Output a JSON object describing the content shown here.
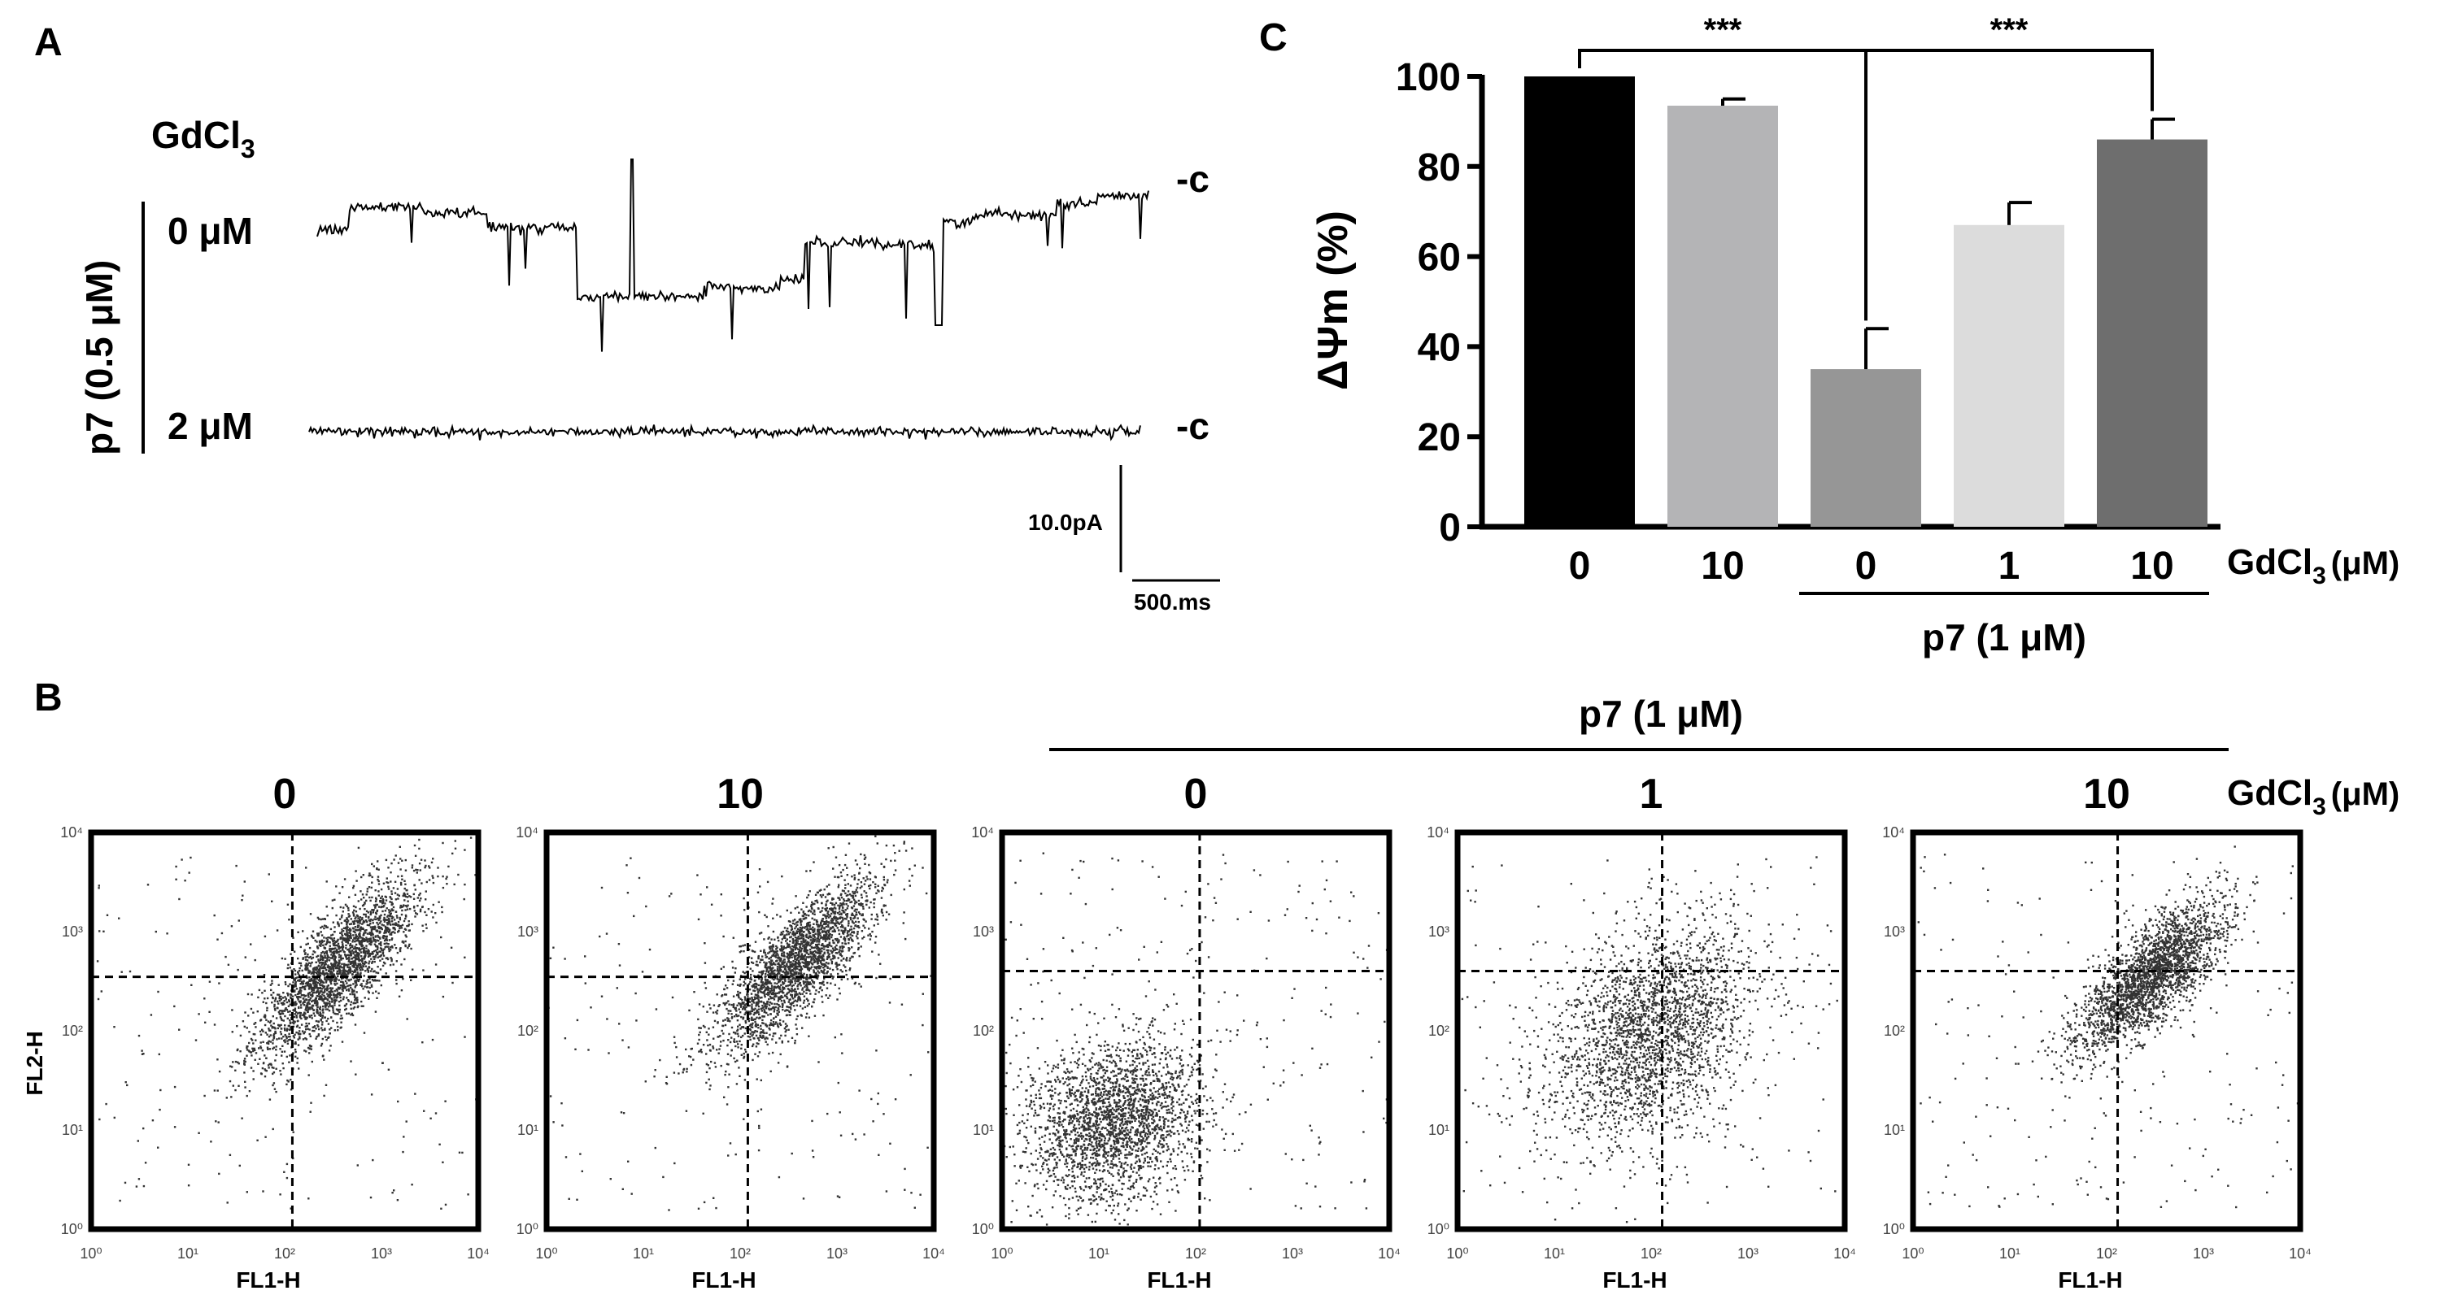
{
  "panel_labels": {
    "a": "A",
    "b": "B",
    "c": "C"
  },
  "panelA": {
    "compound": "GdCl",
    "compound_sub": "3",
    "group_label": "p7 (0.5 μM)",
    "traces": [
      {
        "conc": "0 μM",
        "closed_marker": "-c"
      },
      {
        "conc": "2 μM",
        "closed_marker": "-c"
      }
    ],
    "scale_current": "10.0pA",
    "scale_time": "500.ms"
  },
  "chart_data": [
    {
      "type": "bar",
      "panel": "C",
      "ylabel": "ΔΨm (%)",
      "ylim": [
        0,
        100
      ],
      "yticks": [
        0,
        20,
        40,
        60,
        80,
        100
      ],
      "categories": [
        "0",
        "10",
        "0",
        "1",
        "10"
      ],
      "values": [
        100,
        93.5,
        35,
        67,
        86
      ],
      "errors": [
        0,
        1.5,
        9,
        5,
        4.5
      ],
      "colors": [
        "#000000",
        "#b4b4b6",
        "#969696",
        "#dcdcdc",
        "#6e6e6e"
      ],
      "xlabel_main": "GdCl",
      "xlabel_sub": "3",
      "xlabel_unit": "(μM)",
      "group_label": "p7 (1 μM)",
      "significance": [
        {
          "from": 0,
          "to": 2,
          "label": "***"
        },
        {
          "from": 2,
          "to": 4,
          "label": "***"
        }
      ]
    },
    {
      "type": "scatter",
      "panel": "B",
      "xlabel": "FL1-H",
      "ylabel": "FL2-H",
      "axis_scale": "log",
      "xlim": [
        1,
        10000
      ],
      "ylim": [
        1,
        10000
      ],
      "group_label": "p7 (1 μM)",
      "legend_main": "GdCl",
      "legend_sub": "3",
      "legend_unit": "(μM)",
      "plots": [
        {
          "title": "0",
          "gate_x": 120,
          "gate_y": 350,
          "center": [
            2.55,
            2.65
          ],
          "spread": [
            0.42,
            0.45
          ],
          "corr": 0.8
        },
        {
          "title": "10",
          "gate_x": 120,
          "gate_y": 350,
          "center": [
            2.6,
            2.7
          ],
          "spread": [
            0.42,
            0.45
          ],
          "corr": 0.8
        },
        {
          "title": "0",
          "gate_x": 110,
          "gate_y": 400,
          "center": [
            1.15,
            1.1
          ],
          "spread": [
            0.45,
            0.42
          ],
          "corr": 0.2
        },
        {
          "title": "1",
          "gate_x": 130,
          "gate_y": 400,
          "center": [
            2.0,
            2.0
          ],
          "spread": [
            0.55,
            0.55
          ],
          "corr": 0.35
        },
        {
          "title": "10",
          "gate_x": 130,
          "gate_y": 400,
          "center": [
            2.45,
            2.55
          ],
          "spread": [
            0.38,
            0.38
          ],
          "corr": 0.75
        }
      ],
      "tick_labels": [
        "10⁰",
        "10¹",
        "10²",
        "10³",
        "10⁴"
      ]
    }
  ]
}
